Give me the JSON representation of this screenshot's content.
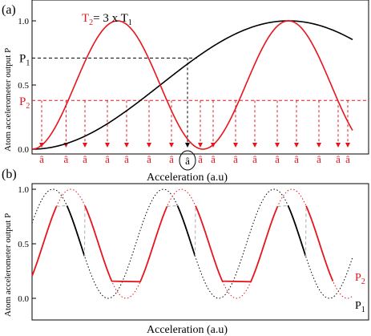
{
  "chart_data": [
    {
      "type": "line",
      "panel_label": "(a)",
      "ylabel": "Atom accelerometer output P",
      "xlabel": "Acceleration (a.u)",
      "xlim": [
        0,
        1
      ],
      "ylim": [
        0,
        1.05
      ],
      "yticks": [
        "0.0",
        "0.5",
        "1.0"
      ],
      "annotation": {
        "parts": [
          "T",
          "2",
          "= 3 x T",
          "1"
        ],
        "color": "#e8141c"
      },
      "series": [
        {
          "color": "#000000",
          "formula": "P1(x) = 0.5 - 0.5*cos(2*pi*x/1.6)"
        },
        {
          "color": "#e8141c",
          "formula": "P2(x) = 0.5 - 0.5*cos(2*pi*3*x/1.6)"
        }
      ],
      "hlines": [
        {
          "label": "P",
          "sub": "1",
          "y": 0.71,
          "color": "#000000",
          "style": "dashed"
        },
        {
          "label": "P",
          "sub": "2",
          "y": 0.38,
          "color": "#e8141c",
          "style": "dashed"
        }
      ],
      "marker_label": "â",
      "red_markers_x": [
        0.03,
        0.106,
        0.165,
        0.235,
        0.295,
        0.365,
        0.435,
        0.525,
        0.565,
        0.635,
        0.695,
        0.765,
        0.825,
        0.895,
        0.955,
        0.985
      ],
      "black_marker_x": 0.485
    },
    {
      "type": "line",
      "panel_label": "(b)",
      "ylabel": "Atom accelerometer output P",
      "xlabel": "Acceleration (a.u)",
      "xlim": [
        0,
        1
      ],
      "ylim": [
        0,
        1.04
      ],
      "yticks": [
        "0.0",
        "0.5",
        "1.0"
      ],
      "series": [
        {
          "name_parts": [
            "P",
            "2"
          ],
          "color": "#e8141c",
          "formula": "shifted cosine fringe, period 0.345"
        },
        {
          "name_parts": [
            "P",
            "1"
          ],
          "color": "#000000",
          "formula": "cosine fringe, period 0.345"
        }
      ],
      "switch_low": 0.15,
      "switch_high": 0.85
    }
  ]
}
